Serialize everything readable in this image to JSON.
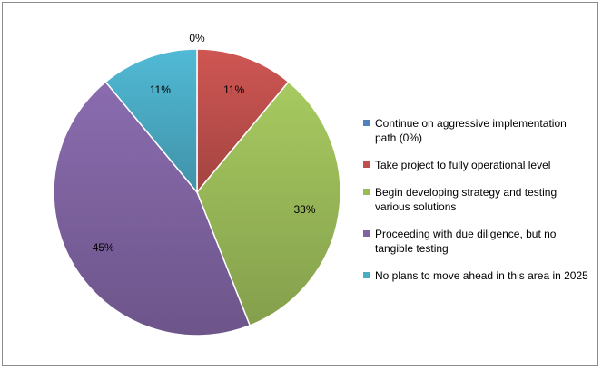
{
  "chart_data": {
    "type": "pie",
    "title": "",
    "slices": [
      {
        "label": "Continue on aggressive implementation path (0%)",
        "value": 0,
        "display": "0%",
        "color": "#4f81bd"
      },
      {
        "label": "Take project to fully operational level",
        "value": 11,
        "display": "11%",
        "color": "#c0504d"
      },
      {
        "label": "Begin developing strategy and testing various solutions",
        "value": 33,
        "display": "33%",
        "color": "#9bbb59"
      },
      {
        "label": "Proceeding with due diligence, but no tangible testing",
        "value": 45,
        "display": "45%",
        "color": "#8064a2"
      },
      {
        "label": "No plans to move ahead in this area in 2025",
        "value": 11,
        "display": "11%",
        "color": "#4bacc6"
      }
    ],
    "legend_position": "right"
  }
}
